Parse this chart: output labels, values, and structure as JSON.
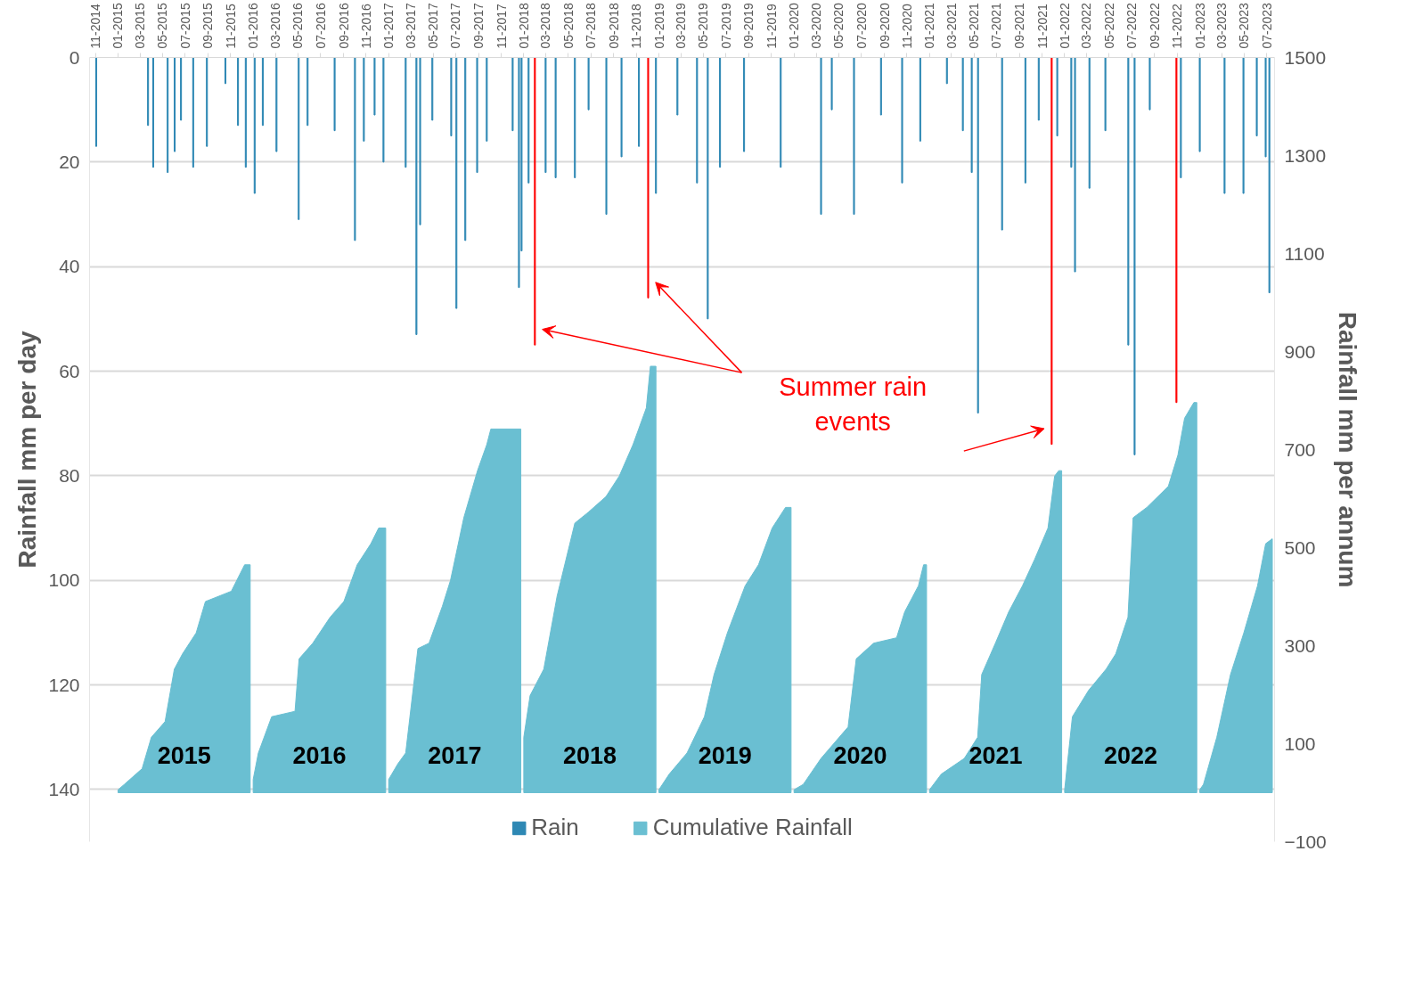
{
  "chart_data": {
    "type": "bar",
    "xlim": [
      "2014-10-16",
      "2023-07-22"
    ],
    "xticks": [
      {
        "value": "2014-11",
        "label": "11-2014"
      },
      {
        "value": "2015-01",
        "label": "01-2015"
      },
      {
        "value": "2015-03",
        "label": "03-2015"
      },
      {
        "value": "2015-05",
        "label": "05-2015"
      },
      {
        "value": "2015-07",
        "label": "07-2015"
      },
      {
        "value": "2015-09",
        "label": "09-2015"
      },
      {
        "value": "2015-11",
        "label": "11-2015"
      },
      {
        "value": "2016-01",
        "label": "01-2016"
      },
      {
        "value": "2016-03",
        "label": "03-2016"
      },
      {
        "value": "2016-05",
        "label": "05-2016"
      },
      {
        "value": "2016-07",
        "label": "07-2016"
      },
      {
        "value": "2016-09",
        "label": "09-2016"
      },
      {
        "value": "2016-11",
        "label": "11-2016"
      },
      {
        "value": "2017-01",
        "label": "01-2017"
      },
      {
        "value": "2017-03",
        "label": "03-2017"
      },
      {
        "value": "2017-05",
        "label": "05-2017"
      },
      {
        "value": "2017-07",
        "label": "07-2017"
      },
      {
        "value": "2017-09",
        "label": "09-2017"
      },
      {
        "value": "2017-11",
        "label": "11-2017"
      },
      {
        "value": "2018-01",
        "label": "01-2018"
      },
      {
        "value": "2018-03",
        "label": "03-2018"
      },
      {
        "value": "2018-05",
        "label": "05-2018"
      },
      {
        "value": "2018-07",
        "label": "07-2018"
      },
      {
        "value": "2018-09",
        "label": "09-2018"
      },
      {
        "value": "2018-11",
        "label": "11-2018"
      },
      {
        "value": "2019-01",
        "label": "01-2019"
      },
      {
        "value": "2019-03",
        "label": "03-2019"
      },
      {
        "value": "2019-05",
        "label": "05-2019"
      },
      {
        "value": "2019-07",
        "label": "07-2019"
      },
      {
        "value": "2019-09",
        "label": "09-2019"
      },
      {
        "value": "2019-11",
        "label": "11-2019"
      },
      {
        "value": "2020-01",
        "label": "01-2020"
      },
      {
        "value": "2020-03",
        "label": "03-2020"
      },
      {
        "value": "2020-05",
        "label": "05-2020"
      },
      {
        "value": "2020-07",
        "label": "07-2020"
      },
      {
        "value": "2020-09",
        "label": "09-2020"
      },
      {
        "value": "2020-11",
        "label": "11-2020"
      },
      {
        "value": "2021-01",
        "label": "01-2021"
      },
      {
        "value": "2021-03",
        "label": "03-2021"
      },
      {
        "value": "2021-05",
        "label": "05-2021"
      },
      {
        "value": "2021-07",
        "label": "07-2021"
      },
      {
        "value": "2021-09",
        "label": "09-2021"
      },
      {
        "value": "2021-11",
        "label": "11-2021"
      },
      {
        "value": "2022-01",
        "label": "01-2022"
      },
      {
        "value": "2022-03",
        "label": "03-2022"
      },
      {
        "value": "2022-05",
        "label": "05-2022"
      },
      {
        "value": "2022-07",
        "label": "07-2022"
      },
      {
        "value": "2022-09",
        "label": "09-2022"
      },
      {
        "value": "2022-11",
        "label": "11-2022"
      },
      {
        "value": "2023-01",
        "label": "01-2023"
      },
      {
        "value": "2023-03",
        "label": "03-2023"
      },
      {
        "value": "2023-05",
        "label": "05-2023"
      },
      {
        "value": "2023-07",
        "label": "07-2023"
      }
    ],
    "ylabel": "Rainfall mm per day",
    "y2label": "Rainfall mm per annum",
    "ylim": [
      150,
      0
    ],
    "yticks": [
      0,
      20,
      40,
      60,
      80,
      100,
      120,
      140
    ],
    "y2lim": [
      -100,
      1500
    ],
    "y2ticks": [
      -100,
      100,
      300,
      500,
      700,
      900,
      1100,
      1300,
      1500
    ],
    "grid": "y",
    "legend": "bottom",
    "series": [
      {
        "name": "Rain",
        "color": "#2e88b4",
        "x": [
          "2014-11-03",
          "2015-03-23",
          "2015-04-06",
          "2015-05-15",
          "2015-06-03",
          "2015-06-20",
          "2015-07-23",
          "2015-08-29",
          "2015-10-18",
          "2015-11-21",
          "2015-12-12",
          "2016-01-05",
          "2016-01-27",
          "2016-03-04",
          "2016-05-03",
          "2016-05-27",
          "2016-08-08",
          "2016-10-02",
          "2016-10-26",
          "2016-11-24",
          "2016-12-18",
          "2017-02-16",
          "2017-03-17",
          "2017-03-27",
          "2017-04-29",
          "2017-06-19",
          "2017-07-03",
          "2017-07-27",
          "2017-08-28",
          "2017-09-23",
          "2017-12-02",
          "2017-12-19",
          "2017-12-26",
          "2018-01-14",
          "2018-01-31",
          "2018-03-01",
          "2018-03-28",
          "2018-05-19",
          "2018-06-25",
          "2018-08-12",
          "2018-09-22",
          "2018-11-08",
          "2018-12-03",
          "2018-12-24",
          "2019-02-20",
          "2019-04-14",
          "2019-05-13",
          "2019-06-15",
          "2019-08-19",
          "2019-11-26",
          "2020-03-14",
          "2020-04-12",
          "2020-06-11",
          "2020-08-23",
          "2020-10-19",
          "2020-12-07",
          "2021-02-17",
          "2021-04-01",
          "2021-04-25",
          "2021-05-12",
          "2021-07-16",
          "2021-09-17",
          "2021-10-23",
          "2021-11-27",
          "2021-12-12",
          "2022-01-19",
          "2022-01-29",
          "2022-03-09",
          "2022-04-21",
          "2022-06-22",
          "2022-07-09",
          "2022-08-19",
          "2022-10-30",
          "2022-11-11",
          "2023-01-01",
          "2023-03-09",
          "2023-04-29",
          "2023-06-04",
          "2023-06-28",
          "2023-07-08"
        ],
        "values": [
          17,
          13,
          21,
          22,
          18,
          12,
          21,
          17,
          5,
          13,
          21,
          26,
          13,
          18,
          31,
          13,
          14,
          35,
          16,
          11,
          20,
          21,
          53,
          32,
          12,
          15,
          48,
          35,
          22,
          16,
          14,
          44,
          37,
          24,
          55,
          22,
          23,
          23,
          10,
          30,
          19,
          17,
          46,
          26,
          11,
          24,
          50,
          21,
          18,
          21,
          30,
          10,
          30,
          11,
          24,
          16,
          5,
          14,
          22,
          68,
          33,
          24,
          12,
          74,
          15,
          21,
          41,
          25,
          14,
          55,
          76,
          10,
          66,
          23,
          18,
          26,
          26,
          15,
          19,
          45
        ],
        "colors": [
          "#2e88b4",
          "#2e88b4",
          "#2e88b4",
          "#2e88b4",
          "#2e88b4",
          "#2e88b4",
          "#2e88b4",
          "#2e88b4",
          "#2e88b4",
          "#2e88b4",
          "#2e88b4",
          "#2e88b4",
          "#2e88b4",
          "#2e88b4",
          "#2e88b4",
          "#2e88b4",
          "#2e88b4",
          "#2e88b4",
          "#2e88b4",
          "#2e88b4",
          "#2e88b4",
          "#2e88b4",
          "#2e88b4",
          "#2e88b4",
          "#2e88b4",
          "#2e88b4",
          "#2e88b4",
          "#2e88b4",
          "#2e88b4",
          "#2e88b4",
          "#2e88b4",
          "#2e88b4",
          "#2e88b4",
          "#2e88b4",
          "#ff0000",
          "#2e88b4",
          "#2e88b4",
          "#2e88b4",
          "#2e88b4",
          "#2e88b4",
          "#2e88b4",
          "#2e88b4",
          "#ff0000",
          "#2e88b4",
          "#2e88b4",
          "#2e88b4",
          "#2e88b4",
          "#2e88b4",
          "#2e88b4",
          "#2e88b4",
          "#2e88b4",
          "#2e88b4",
          "#2e88b4",
          "#2e88b4",
          "#2e88b4",
          "#2e88b4",
          "#2e88b4",
          "#2e88b4",
          "#2e88b4",
          "#2e88b4",
          "#2e88b4",
          "#2e88b4",
          "#2e88b4",
          "#ff0000",
          "#2e88b4",
          "#2e88b4",
          "#2e88b4",
          "#2e88b4",
          "#2e88b4",
          "#2e88b4",
          "#2e88b4",
          "#2e88b4",
          "#ff0000",
          "#2e88b4",
          "#2e88b4",
          "#2e88b4",
          "#2e88b4",
          "#2e88b4",
          "#2e88b4",
          "#2e88b4"
        ]
      },
      {
        "name": "Cumulative Rainfall",
        "type": "area",
        "axis": "y2",
        "color": "#6abfd2",
        "x": [
          "2015-01-01",
          "2015-01-18",
          "2015-03-07",
          "2015-04-01",
          "2015-05-08",
          "2015-06-02",
          "2015-06-24",
          "2015-07-31",
          "2015-08-25",
          "2015-11-03",
          "2015-12-09",
          "2015-12-24",
          "2015-12-27",
          "2016-01-01",
          "2016-01-15",
          "2016-02-20",
          "2016-04-23",
          "2016-05-04",
          "2016-06-10",
          "2016-07-27",
          "2016-09-02",
          "2016-10-08",
          "2016-11-14",
          "2016-12-05",
          "2016-12-24",
          "2016-12-27",
          "2017-01-01",
          "2017-01-26",
          "2017-02-16",
          "2017-03-21",
          "2017-04-20",
          "2017-05-26",
          "2017-06-17",
          "2017-07-23",
          "2017-08-29",
          "2017-09-23",
          "2017-10-04",
          "2017-12-24",
          "2017-12-27",
          "2018-01-01",
          "2018-01-18",
          "2018-02-24",
          "2018-04-01",
          "2018-05-19",
          "2018-06-24",
          "2018-08-11",
          "2018-09-16",
          "2018-10-23",
          "2018-11-28",
          "2018-12-09",
          "2018-12-24",
          "2018-12-27",
          "2019-01-01",
          "2019-01-29",
          "2019-03-18",
          "2019-05-04",
          "2019-05-30",
          "2019-07-05",
          "2019-08-22",
          "2019-09-27",
          "2019-11-03",
          "2019-12-09",
          "2019-12-24",
          "2019-12-27",
          "2020-01-01",
          "2020-01-26",
          "2020-03-14",
          "2020-05-26",
          "2020-06-17",
          "2020-08-03",
          "2020-10-04",
          "2020-10-26",
          "2020-12-02",
          "2020-12-16",
          "2020-12-24",
          "2020-12-27",
          "2021-01-01",
          "2021-02-02",
          "2021-04-05",
          "2021-05-11",
          "2021-05-22",
          "2021-06-28",
          "2021-08-03",
          "2021-09-09",
          "2021-10-12",
          "2021-11-17",
          "2021-12-05",
          "2021-12-16",
          "2021-12-24",
          "2021-12-27",
          "2022-01-01",
          "2022-01-22",
          "2022-03-07",
          "2022-04-23",
          "2022-05-19",
          "2022-06-21",
          "2022-07-05",
          "2022-08-11",
          "2022-10-08",
          "2022-11-03",
          "2022-11-21",
          "2022-12-16",
          "2022-12-24",
          "2022-12-27",
          "2023-01-01",
          "2023-01-11",
          "2023-02-16",
          "2023-03-25",
          "2023-04-30",
          "2023-06-06",
          "2023-06-28",
          "2023-07-16"
        ],
        "values": [
          6,
          17,
          49,
          113,
          145,
          252,
          283,
          326,
          390,
          411,
          465,
          465,
          null,
          27,
          81,
          155,
          166,
          273,
          305,
          358,
          390,
          465,
          508,
          540,
          540,
          null,
          27,
          59,
          81,
          294,
          305,
          380,
          433,
          561,
          657,
          710,
          742,
          742,
          null,
          113,
          198,
          252,
          401,
          550,
          572,
          604,
          646,
          710,
          785,
          870,
          870,
          null,
          6,
          38,
          81,
          155,
          241,
          326,
          422,
          465,
          540,
          582,
          582,
          null,
          6,
          17,
          70,
          134,
          273,
          305,
          316,
          369,
          422,
          465,
          465,
          null,
          6,
          38,
          70,
          113,
          241,
          305,
          369,
          422,
          476,
          540,
          646,
          657,
          657,
          null,
          6,
          155,
          209,
          252,
          283,
          358,
          561,
          582,
          625,
          689,
          764,
          796,
          796,
          null,
          6,
          17,
          113,
          241,
          326,
          422,
          508,
          518
        ]
      }
    ],
    "annotations": [
      "2015",
      "2016",
      "2017",
      "2018",
      "2019",
      "2020",
      "2021",
      "2022",
      "Summer rain events"
    ]
  }
}
